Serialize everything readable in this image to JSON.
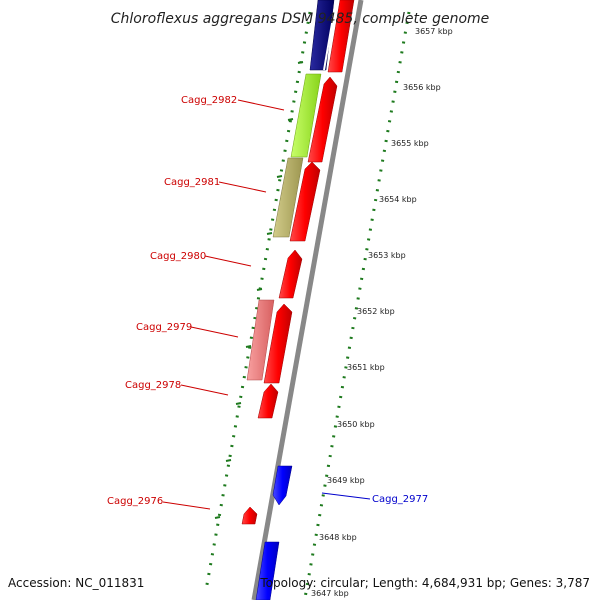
{
  "title": "Chloroflexus aggregans DSM 9485, complete genome",
  "footer": {
    "accession": "Accession: NC_011831",
    "topology": "Topology: circular; Length: 4,684,931 bp; Genes: 3,787"
  },
  "colors": {
    "forward_strand": "#ff0000",
    "reverse_strand": "#0000ff",
    "label_forward": "#cc0000",
    "label_reverse": "#0000cc",
    "backbone": "#888888",
    "tick": "#1e7a1e",
    "navy_feature": "#0a0a80",
    "green_feature": "#adff2f",
    "olive_feature": "#bdb76b",
    "pink_feature": "#f08080"
  },
  "axis_ticks": [
    {
      "kbp": 3657,
      "label": "3657 kbp"
    },
    {
      "kbp": 3656,
      "label": "3656 kbp"
    },
    {
      "kbp": 3655,
      "label": "3655 kbp"
    },
    {
      "kbp": 3654,
      "label": "3654 kbp"
    },
    {
      "kbp": 3653,
      "label": "3653 kbp"
    },
    {
      "kbp": 3652,
      "label": "3652 kbp"
    },
    {
      "kbp": 3651,
      "label": "3651 kbp"
    },
    {
      "kbp": 3650,
      "label": "3650 kbp"
    },
    {
      "kbp": 3649,
      "label": "3649 kbp"
    },
    {
      "kbp": 3648,
      "label": "3648 kbp"
    },
    {
      "kbp": 3647,
      "label": "3647 kbp"
    }
  ],
  "gene_labels": [
    {
      "name": "Cagg_2982",
      "strand": "forward"
    },
    {
      "name": "Cagg_2981",
      "strand": "forward"
    },
    {
      "name": "Cagg_2980",
      "strand": "forward"
    },
    {
      "name": "Cagg_2979",
      "strand": "forward"
    },
    {
      "name": "Cagg_2978",
      "strand": "forward"
    },
    {
      "name": "Cagg_2977",
      "strand": "reverse"
    },
    {
      "name": "Cagg_2976",
      "strand": "forward"
    }
  ]
}
